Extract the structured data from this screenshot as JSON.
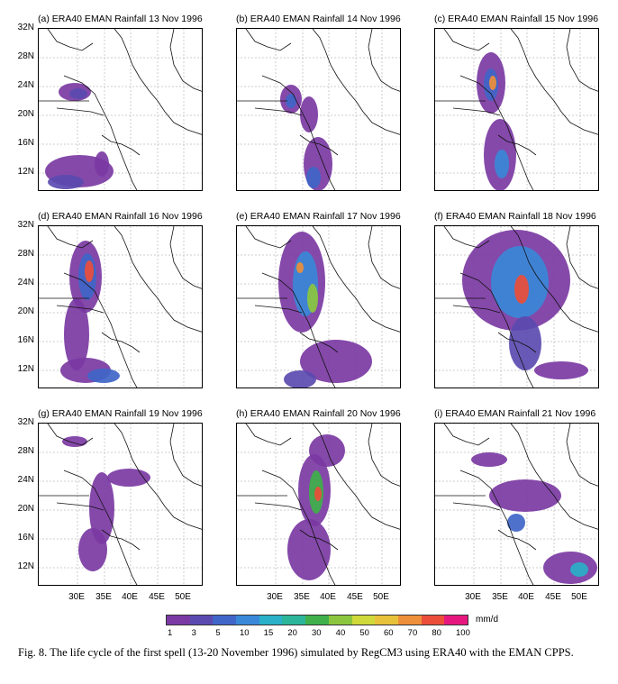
{
  "figure": {
    "panels": [
      {
        "title": "(a) ERA40 EMAN Rainfall 13 Nov 1996"
      },
      {
        "title": "(b) ERA40 EMAN Rainfall 14 Nov 1996"
      },
      {
        "title": "(c) ERA40 EMAN Rainfall 15 Nov 1996"
      },
      {
        "title": "(d) ERA40 EMAN Rainfall 16 Nov 1996"
      },
      {
        "title": "(e) ERA40 EMAN Rainfall 17 Nov 1996"
      },
      {
        "title": "(f) ERA40 EMAN Rainfall 18 Nov 1996"
      },
      {
        "title": "(g) ERA40 EMAN Rainfall 19 Nov 1996"
      },
      {
        "title": "(h) ERA40 EMAN Rainfall 20 Nov 1996"
      },
      {
        "title": "(i) ERA40 EMAN Rainfall 21 Nov 1996"
      }
    ],
    "lat_labels": [
      "32N",
      "28N",
      "24N",
      "20N",
      "16N",
      "12N"
    ],
    "lon_labels": [
      "30E",
      "35E",
      "40E",
      "45E",
      "50E"
    ],
    "colorbar": {
      "ticks": [
        "1",
        "3",
        "5",
        "10",
        "15",
        "20",
        "30",
        "40",
        "50",
        "60",
        "70",
        "80",
        "100"
      ],
      "unit": "mm/d",
      "colors": [
        "#7b3aa3",
        "#5b4bb0",
        "#3f66c8",
        "#3a88d8",
        "#2ab0c8",
        "#2bb59a",
        "#3fb04a",
        "#8cc63f",
        "#cfd93a",
        "#e8c13a",
        "#ee8f3a",
        "#ec4e3a",
        "#e6187f"
      ]
    },
    "caption": "Fig. 8. The life cycle of the first spell (13-20 November 1996) simulated by RegCM3 using ERA40 with the EMAN CPPS."
  }
}
